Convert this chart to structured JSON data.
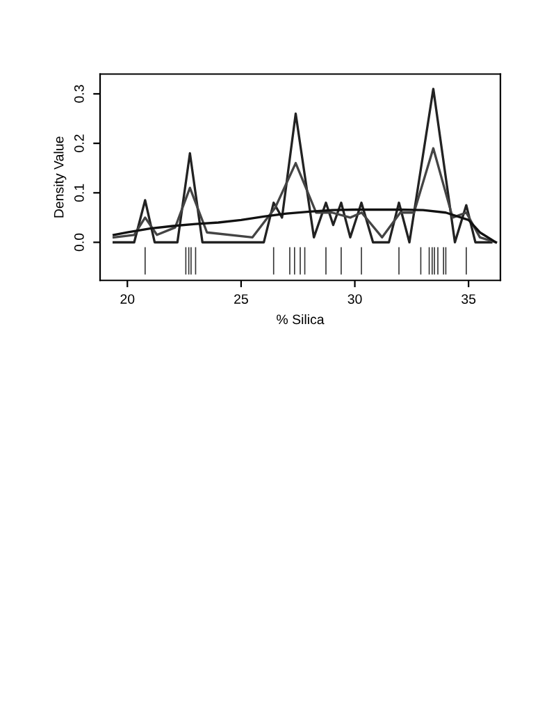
{
  "chart_data": {
    "type": "line",
    "xlabel": "% Silica",
    "ylabel": "Density Value",
    "xlim": [
      18.8,
      36.4
    ],
    "ylim": [
      -0.077,
      0.34
    ],
    "xticks": [
      20,
      25,
      30,
      35
    ],
    "yticks": [
      {
        "value": 0,
        "label": "0.0"
      },
      {
        "value": 0.1,
        "label": "0.1"
      },
      {
        "value": 0.2,
        "label": "0.2"
      },
      {
        "value": 0.3,
        "label": "0.3"
      }
    ],
    "grid": false,
    "legend": false,
    "series": [
      {
        "color": "#222222",
        "x": [
          19.4,
          20.3,
          20.78,
          21.2,
          22.2,
          22.75,
          23.3,
          26.0,
          26.43,
          26.8,
          27.4,
          28.2,
          28.73,
          29.05,
          29.4,
          29.8,
          30.29,
          30.8,
          31.5,
          31.94,
          32.4,
          33.45,
          34.4,
          34.9,
          35.3,
          36.0
        ],
        "values": [
          0.0,
          0.0,
          0.085,
          0.0,
          0.0,
          0.18,
          0.0,
          0.0,
          0.08,
          0.05,
          0.26,
          0.01,
          0.08,
          0.035,
          0.08,
          0.01,
          0.08,
          0.0,
          0.0,
          0.08,
          0.0,
          0.31,
          0.0,
          0.075,
          0.0,
          0.0
        ]
      },
      {
        "color": "#444444",
        "x": [
          19.4,
          20.3,
          20.78,
          21.3,
          22.1,
          22.75,
          23.5,
          25.5,
          26.5,
          27.4,
          28.3,
          29.0,
          29.8,
          30.3,
          31.2,
          32.0,
          32.6,
          33.45,
          34.3,
          34.9,
          35.5,
          36.2
        ],
        "values": [
          0.01,
          0.015,
          0.05,
          0.015,
          0.03,
          0.11,
          0.02,
          0.01,
          0.07,
          0.16,
          0.06,
          0.06,
          0.05,
          0.06,
          0.01,
          0.06,
          0.06,
          0.19,
          0.05,
          0.06,
          0.01,
          0.0
        ]
      },
      {
        "color": "#111111",
        "x": [
          19.4,
          20,
          21,
          22,
          23,
          24,
          25,
          26,
          27,
          28,
          29,
          30,
          31,
          32,
          33,
          34,
          35,
          35.5,
          36.2
        ],
        "values": [
          0.015,
          0.02,
          0.028,
          0.033,
          0.037,
          0.04,
          0.045,
          0.052,
          0.058,
          0.062,
          0.065,
          0.066,
          0.066,
          0.066,
          0.065,
          0.06,
          0.045,
          0.02,
          0.0
        ]
      },
      {
        "type": "bar",
        "color": "#333333",
        "base": [
          -0.065,
          -0.065,
          -0.065,
          -0.065,
          -0.065,
          -0.065,
          -0.065,
          -0.065,
          -0.065,
          -0.065,
          -0.065,
          -0.065,
          -0.065,
          -0.065,
          -0.065,
          -0.065,
          -0.065,
          -0.065,
          -0.065,
          -0.065,
          -0.065,
          -0.065
        ],
        "x": [
          20.78,
          22.57,
          22.7,
          22.8,
          23.0,
          26.43,
          27.14,
          27.35,
          27.6,
          27.8,
          28.73,
          29.4,
          30.29,
          31.94,
          32.9,
          33.27,
          33.4,
          33.5,
          33.65,
          33.9,
          34.0,
          34.9
        ],
        "values": [
          0.055,
          0.055,
          0.055,
          0.055,
          0.055,
          0.055,
          0.055,
          0.055,
          0.055,
          0.055,
          0.055,
          0.055,
          0.055,
          0.055,
          0.055,
          0.055,
          0.055,
          0.055,
          0.055,
          0.055,
          0.055,
          0.055
        ]
      }
    ]
  }
}
